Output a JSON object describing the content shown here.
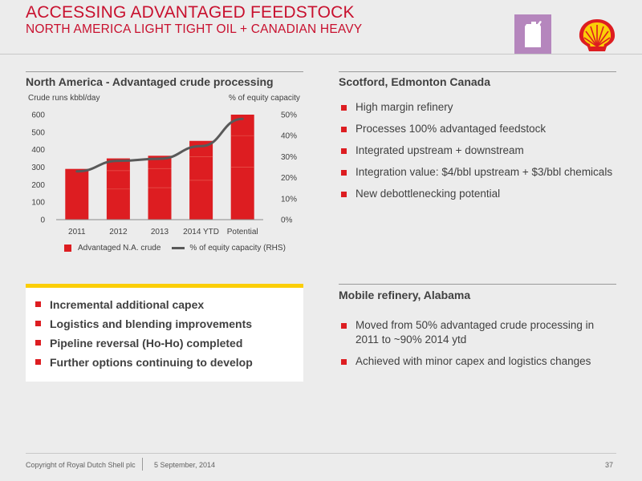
{
  "header": {
    "title": "ACCESSING ADVANTAGED FEEDSTOCK",
    "subtitle": "NORTH AMERICA LIGHT TIGHT OIL + CANADIAN HEAVY",
    "icons": [
      "fuel-can-icon",
      "shell-pecten-logo"
    ]
  },
  "left_section": {
    "heading": "North America - Advantaged crude processing",
    "y_left_label": "Crude runs kbbl/day",
    "y_right_label": "% of equity capacity",
    "legend": {
      "bar_label": "Advantaged N.A. crude",
      "line_label": "% of equity capacity (RHS)"
    }
  },
  "chart_data": {
    "type": "bar",
    "categories": [
      "2011",
      "2012",
      "2013",
      "2014 YTD",
      "Potential"
    ],
    "series": [
      {
        "name": "Advantaged N.A. crude",
        "type": "bar",
        "axis": "left",
        "values": [
          290,
          350,
          365,
          450,
          600
        ]
      },
      {
        "name": "% of equity capacity (RHS)",
        "type": "line",
        "axis": "right",
        "values": [
          23,
          28,
          29,
          35,
          48
        ]
      }
    ],
    "y_left_ticks": [
      "0",
      "100",
      "200",
      "300",
      "400",
      "500",
      "600"
    ],
    "y_right_ticks": [
      "0%",
      "10%",
      "20%",
      "30%",
      "40%",
      "50%"
    ],
    "ylim_left": [
      0,
      600
    ],
    "ylim_right": [
      0,
      50
    ],
    "legend_position": "bottom",
    "colors": {
      "bar": "#dd1d21",
      "line": "#595959"
    }
  },
  "scotford": {
    "heading": "Scotford, Edmonton Canada",
    "bullets": [
      "High margin refinery",
      "Processes 100% advantaged feedstock",
      "Integrated upstream + downstream",
      "Integration value: $4/bbl upstream + $3/bbl chemicals",
      "New debottlenecking potential"
    ]
  },
  "highlights": {
    "bullets": [
      "Incremental additional capex",
      "Logistics and blending improvements",
      "Pipeline reversal (Ho-Ho) completed",
      "Further options continuing to develop"
    ]
  },
  "mobile": {
    "heading": "Mobile refinery, Alabama",
    "bullets": [
      "Moved from 50% advantaged crude processing in 2011 to ~90% 2014 ytd",
      "Achieved with minor capex and logistics changes"
    ]
  },
  "footer": {
    "copyright": "Copyright of Royal Dutch Shell plc",
    "date": "5 September, 2014",
    "page": "37"
  },
  "colors": {
    "brand_red": "#dd1d21",
    "title_red": "#c8102e",
    "shell_yellow": "#fbce07",
    "accent_purple": "#b586bd"
  }
}
